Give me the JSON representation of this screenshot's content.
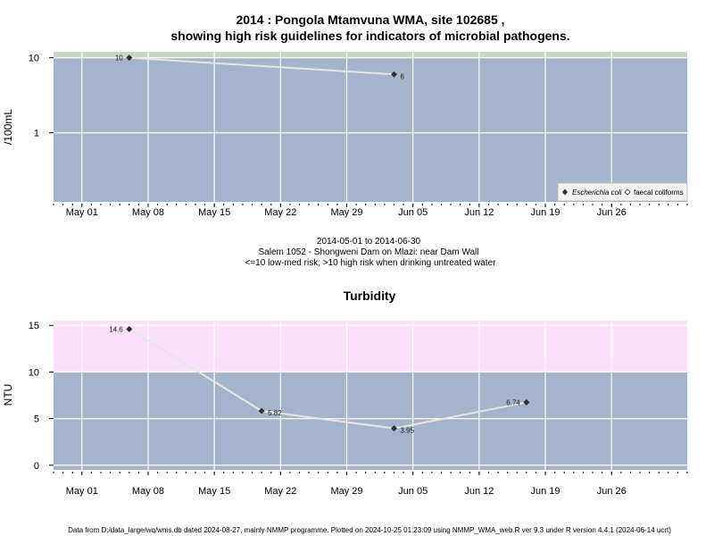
{
  "page": {
    "title_line1": "2014 : Pongola Mtamvuna WMA, site 102685 ,",
    "title_line2": "showing high risk guidelines for indicators of microbial pathogens.",
    "caption_line1": "2014-05-01 to 2014-06-30",
    "caption_line2": "Salem 1052 - Shongweni Dam on Mlazi: near Dam Wall",
    "caption_line3": "<=10 low-med risk; >10 high risk when drinking untreated water",
    "footer": "Data from D:/data_large/wq/wms.db dated 2024-08-27, mainly NMMP programme. Plotted on 2024-10-25 01:23:09 using NMMP_WMA_web.R ver 9.3 under R version 4.4.1 (2024-06-14 ucrt)"
  },
  "colors": {
    "panel_bg": "#a3b4cc",
    "high_risk_microbial": "#c7d7c2",
    "high_risk_turbidity": "#fbe0fb",
    "series_line": "#e6e6e6",
    "marker": "#303030",
    "grid": "#ffffff"
  },
  "chart_data": [
    {
      "type": "line",
      "title": "",
      "xlabel": "",
      "ylabel": "/100mL",
      "y_scale": "log",
      "ylim": [
        0.12,
        12
      ],
      "y_ticks": [
        1,
        10
      ],
      "y_tick_labels": [
        "1",
        "10"
      ],
      "x_range": [
        "2014-04-28",
        "2014-07-04"
      ],
      "x_ticks": [
        "2014-05-01",
        "2014-05-08",
        "2014-05-15",
        "2014-05-22",
        "2014-05-29",
        "2014-06-05",
        "2014-06-12",
        "2014-06-19",
        "2014-06-26"
      ],
      "x_tick_labels": [
        "May 01",
        "May 08",
        "May 15",
        "May 22",
        "May 29",
        "Jun 05",
        "Jun 12",
        "Jun 19",
        "Jun 26"
      ],
      "high_risk_threshold": 10,
      "grid": true,
      "legend": {
        "placement": "bottom-right",
        "entries": [
          {
            "label": "Escherichia coli",
            "marker": "filled-diamond"
          },
          {
            "label": "faecal coliforms",
            "marker": "open-diamond"
          }
        ]
      },
      "series": [
        {
          "name": "Escherichia coli",
          "points": [
            {
              "x": "2014-05-06",
              "y": 10,
              "label": "10"
            },
            {
              "x": "2014-06-03",
              "y": 6,
              "label": "6"
            }
          ]
        }
      ]
    },
    {
      "type": "line",
      "title": "Turbidity",
      "xlabel": "",
      "ylabel": "NTU",
      "y_scale": "linear",
      "ylim": [
        -0.5,
        15.5
      ],
      "y_ticks": [
        0,
        5,
        10,
        15
      ],
      "y_tick_labels": [
        "0",
        "5",
        "10",
        "15"
      ],
      "x_range": [
        "2014-04-28",
        "2014-07-04"
      ],
      "x_ticks": [
        "2014-05-01",
        "2014-05-08",
        "2014-05-15",
        "2014-05-22",
        "2014-05-29",
        "2014-06-05",
        "2014-06-12",
        "2014-06-19",
        "2014-06-26"
      ],
      "x_tick_labels": [
        "May 01",
        "May 08",
        "May 15",
        "May 22",
        "May 29",
        "Jun 05",
        "Jun 12",
        "Jun 19",
        "Jun 26"
      ],
      "high_risk_threshold": 10,
      "grid": true,
      "series": [
        {
          "name": "Turbidity",
          "points": [
            {
              "x": "2014-05-06",
              "y": 14.6,
              "label": "14.6"
            },
            {
              "x": "2014-05-20",
              "y": 5.82,
              "label": "5.82"
            },
            {
              "x": "2014-06-03",
              "y": 3.95,
              "label": "3.95"
            },
            {
              "x": "2014-06-17",
              "y": 6.74,
              "label": "6.74"
            }
          ]
        }
      ]
    }
  ]
}
